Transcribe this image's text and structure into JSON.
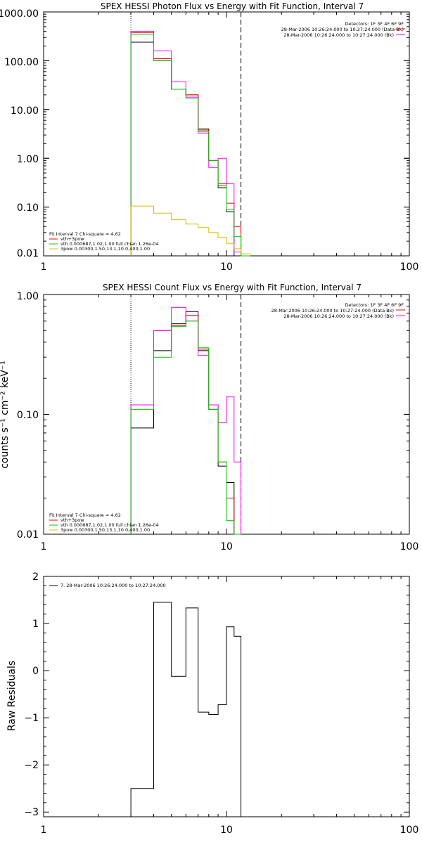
{
  "chart_data": [
    {
      "type": "line",
      "title": "SPEX HESSI Photon Flux vs Energy with Fit Function, Interval 7",
      "xlabel": "",
      "ylabel": "",
      "xscale": "log",
      "yscale": "log",
      "xlim": [
        1,
        100
      ],
      "ylim": [
        0.01,
        1000
      ],
      "xticks": [
        "1",
        "10",
        "100"
      ],
      "yticks": [
        "0.01",
        "0.10",
        "1.00",
        "10.00",
        "100.00",
        "1000.00"
      ],
      "ytick_values": [
        0.01,
        0.1,
        1,
        10,
        100,
        1000
      ],
      "grid": false,
      "legend_position": "top-right",
      "legend_lines": [
        "Detectors: 1F 3F 4F 6F 9F",
        "28-Mar-2006 10:26:24.000 to 10:27:24.000 (Data-Bk)",
        "28-Mar-2006 10:26:24.000 to 10:27:24.000 (Bk)"
      ],
      "fit_legend": [
        "Fit Interval 7   Chi-square = 4.62",
        "vth+3pow",
        "vth 0.000687,1.02,1.00  full chian 1.26e-04",
        "3pow 0.00300,1.50,13.1,10.0,400,1.00"
      ],
      "markers": [
        {
          "style": "dotted",
          "x": 3.0
        },
        {
          "style": "dashed",
          "x": 12.0
        }
      ],
      "bin_edges": [
        3.0,
        4.0,
        5.0,
        6.0,
        7.0,
        8.0,
        9.0,
        10.0,
        11.0,
        12.0,
        13.5
      ],
      "series": [
        {
          "color": "#000000",
          "values": [
            240,
            100,
            26,
            20,
            4.0,
            0.9,
            0.25,
            0.08,
            0.01,
            null
          ]
        },
        {
          "color": "#ff0000",
          "values": [
            380,
            110,
            26,
            20,
            3.8,
            0.9,
            0.3,
            0.12,
            0.04,
            0.01
          ]
        },
        {
          "color": "#ff00ff",
          "values": [
            400,
            160,
            37,
            18,
            3.3,
            0.65,
            1.0,
            0.3,
            0.012,
            null
          ]
        },
        {
          "color": "#00cc00",
          "values": [
            350,
            100,
            26,
            17,
            3.5,
            0.9,
            0.28,
            0.09,
            0.025,
            0.01
          ]
        },
        {
          "color": "#ddbb00",
          "values": [
            0.105,
            0.075,
            0.055,
            0.045,
            0.038,
            0.03,
            0.024,
            0.018,
            0.014,
            0.011
          ]
        }
      ]
    },
    {
      "type": "line",
      "title": "SPEX HESSI Count Flux vs Energy with Fit Function, Interval 7",
      "xlabel": "",
      "ylabel": "counts s⁻¹ cm⁻² keV⁻¹",
      "xscale": "log",
      "yscale": "log",
      "xlim": [
        1,
        100
      ],
      "ylim": [
        0.01,
        1
      ],
      "xticks": [
        "1",
        "10",
        "100"
      ],
      "yticks": [
        "0.01",
        "0.10",
        "1.00"
      ],
      "ytick_values": [
        0.01,
        0.1,
        1
      ],
      "grid": false,
      "legend_position": "top-right",
      "legend_lines": [
        "Detectors: 1F 3F 4F 6F 9F",
        "28-Mar-2006 10:26:24.000 to 10:27:24.000 (Data-Bk)",
        "28-Mar-2006 10:26:24.000 to 10:27:24.000 (Bk)"
      ],
      "fit_legend": [
        "Fit Interval 7   Chi-square = 4.62",
        "vth+3pow",
        "vth 0.000687,1.02,1.00  full chian 1.26e-04",
        "3pow 0.00300,1.50,13.1,10.0,400,1.00"
      ],
      "markers": [
        {
          "style": "dotted",
          "x": 3.0
        },
        {
          "style": "dashed",
          "x": 12.0
        }
      ],
      "bin_edges": [
        3.0,
        4.0,
        5.0,
        6.0,
        7.0,
        8.0,
        9.0,
        10.0,
        11.0,
        12.0
      ],
      "series": [
        {
          "color": "#000000",
          "values": [
            0.077,
            0.34,
            0.57,
            0.72,
            0.34,
            0.11,
            0.037,
            0.027,
            0.01
          ]
        },
        {
          "color": "#ff0000",
          "values": [
            0.12,
            0.5,
            0.55,
            0.67,
            0.35,
            0.12,
            0.04,
            0.02,
            0.01
          ]
        },
        {
          "color": "#ff00ff",
          "values": [
            0.12,
            0.5,
            0.78,
            0.6,
            0.31,
            0.12,
            0.085,
            0.14,
            0.04
          ]
        },
        {
          "color": "#00cc00",
          "values": [
            0.11,
            0.3,
            0.54,
            0.6,
            0.36,
            0.11,
            0.04,
            0.013,
            0.01
          ]
        }
      ]
    },
    {
      "type": "line",
      "title": "",
      "xlabel": "",
      "ylabel": "Raw Residuals",
      "xscale": "log",
      "yscale": "linear",
      "xlim": [
        1,
        100
      ],
      "ylim": [
        -3.1,
        2.0
      ],
      "xticks": [
        "1",
        "10",
        "100"
      ],
      "yticks": [
        "2",
        "1",
        "0",
        "−1",
        "−2",
        "−3"
      ],
      "ytick_values": [
        2,
        1,
        0,
        -1,
        -2,
        -3
      ],
      "grid": false,
      "legend_position": "top-left",
      "legend_lines": [
        "7. 28-Mar-2006 10:26:24.000 to 10:27:24.000"
      ],
      "bin_edges": [
        3.0,
        4.0,
        5.0,
        6.0,
        7.0,
        8.0,
        9.0,
        10.0,
        11.0,
        12.0
      ],
      "series": [
        {
          "color": "#000000",
          "values": [
            -2.5,
            1.45,
            -0.12,
            1.33,
            -0.88,
            -0.93,
            -0.72,
            0.93,
            0.73
          ]
        }
      ]
    }
  ]
}
